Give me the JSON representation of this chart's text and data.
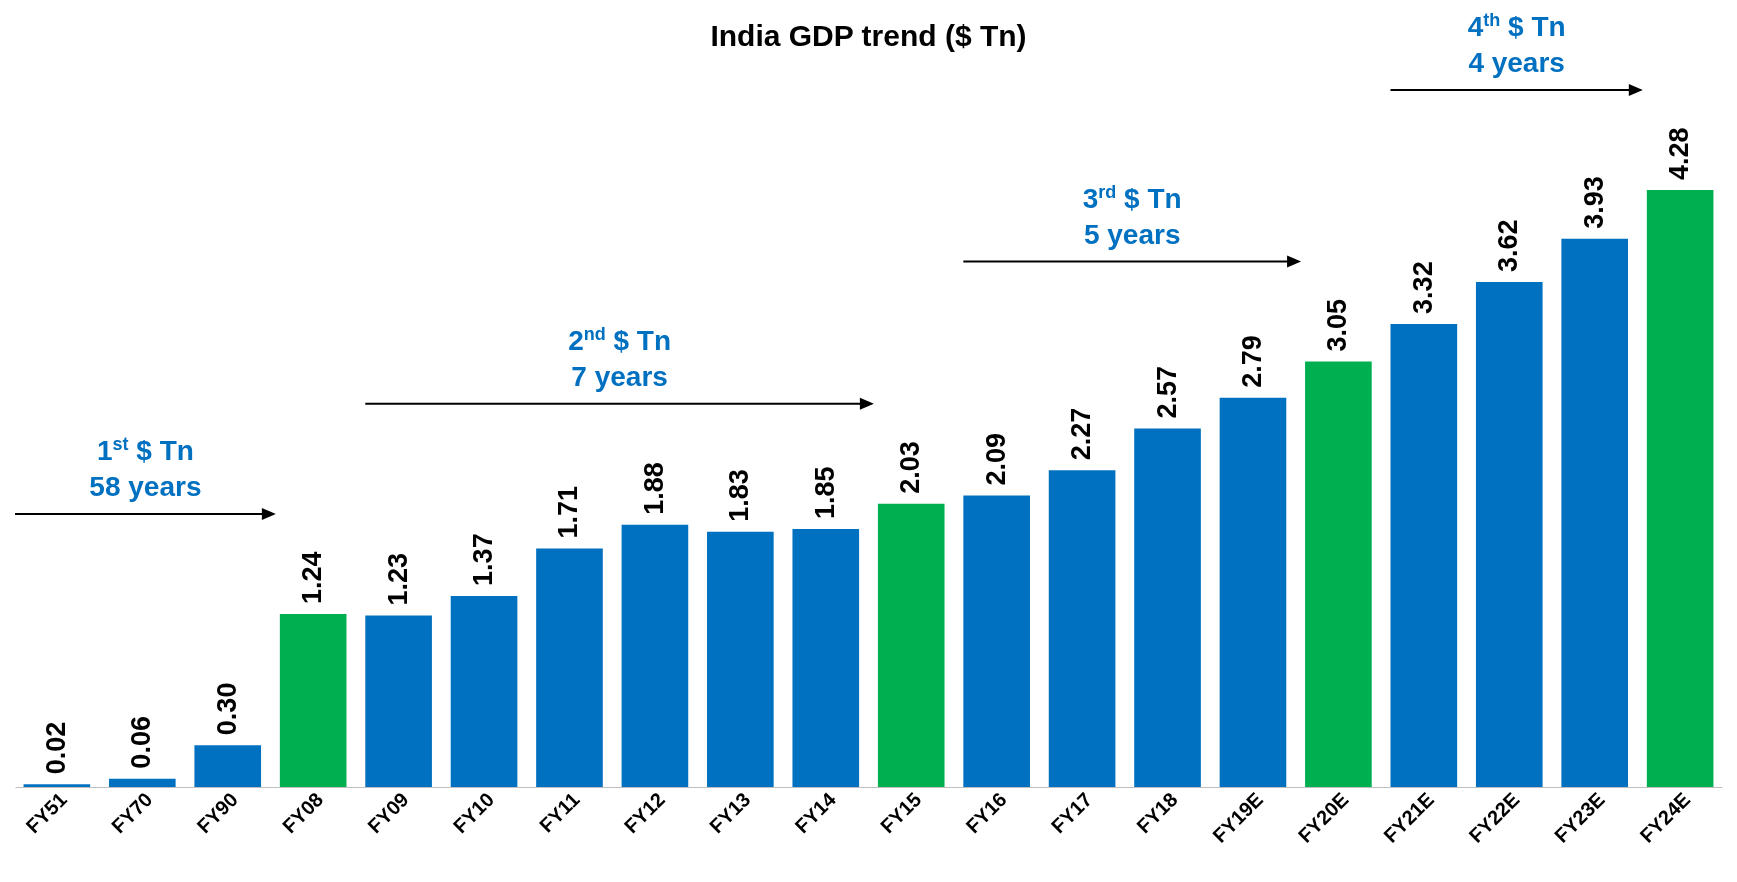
{
  "chart_data": {
    "type": "bar",
    "title": "India GDP trend ($ Tn)",
    "categories": [
      "FY51",
      "FY70",
      "FY90",
      "FY08",
      "FY09",
      "FY10",
      "FY11",
      "FY12",
      "FY13",
      "FY14",
      "FY15",
      "FY16",
      "FY17",
      "FY18",
      "FY19E",
      "FY20E",
      "FY21E",
      "FY22E",
      "FY23E",
      "FY24E"
    ],
    "values": [
      0.02,
      0.06,
      0.3,
      1.24,
      1.23,
      1.37,
      1.71,
      1.88,
      1.83,
      1.85,
      2.03,
      2.09,
      2.27,
      2.57,
      2.79,
      3.05,
      3.32,
      3.62,
      3.93,
      4.28
    ],
    "colors": [
      "#0070c0",
      "#0070c0",
      "#0070c0",
      "#00b050",
      "#0070c0",
      "#0070c0",
      "#0070c0",
      "#0070c0",
      "#0070c0",
      "#0070c0",
      "#00b050",
      "#0070c0",
      "#0070c0",
      "#0070c0",
      "#0070c0",
      "#00b050",
      "#0070c0",
      "#0070c0",
      "#0070c0",
      "#00b050"
    ],
    "value_labels": [
      "0.02",
      "0.06",
      "0.30",
      "1.24",
      "1.23",
      "1.37",
      "1.71",
      "1.88",
      "1.83",
      "1.85",
      "2.03",
      "2.09",
      "2.27",
      "2.57",
      "2.79",
      "3.05",
      "3.32",
      "3.62",
      "3.93",
      "4.28"
    ],
    "tick_labels": "x",
    "annotations": [
      "1$^{st}$ $ Tn\n58 years",
      "2$^{nd}$ $ Tn\n7 years",
      "3$^{rd}$ $ Tn\n5 years",
      "4$^{th}$ $ Tn\n4 years"
    ]
  }
}
